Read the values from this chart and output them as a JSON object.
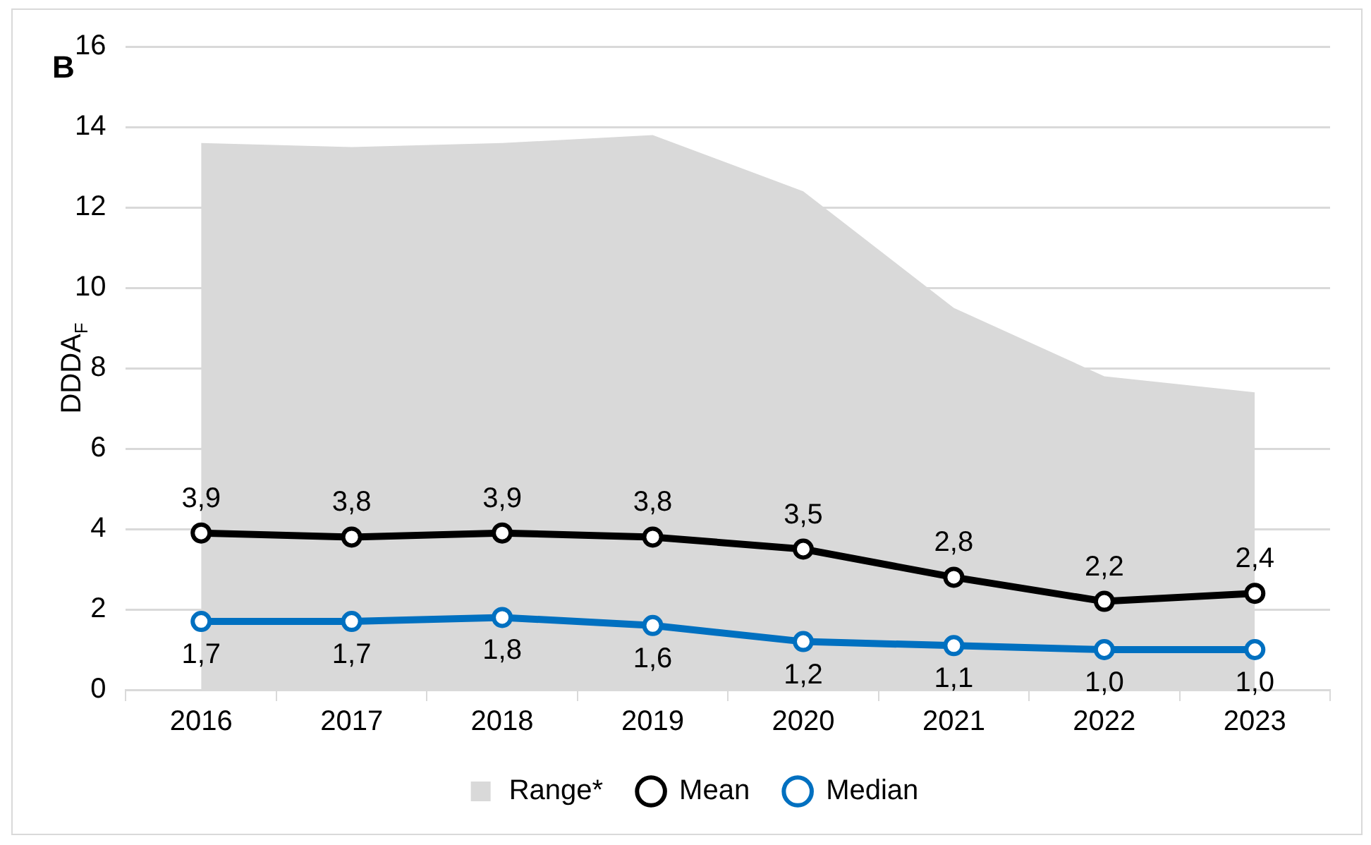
{
  "chart_data": {
    "type": "line",
    "title": "B",
    "ylabel": "DDDA$_{F}$",
    "categories": [
      "2016",
      "2017",
      "2018",
      "2019",
      "2020",
      "2021",
      "2022",
      "2023"
    ],
    "series": [
      {
        "name": "Range*",
        "type": "area",
        "color": "#d9d9d9",
        "values": [
          13.6,
          13.5,
          13.6,
          13.8,
          12.4,
          9.5,
          7.8,
          7.4
        ]
      },
      {
        "name": "Mean",
        "type": "line",
        "color": "#000000",
        "marker": "circle",
        "values": [
          3.9,
          3.8,
          3.9,
          3.8,
          3.5,
          2.8,
          2.2,
          2.4
        ],
        "value_labels": [
          "3,9",
          "3,8",
          "3,9",
          "3,8",
          "3,5",
          "2,8",
          "2,2",
          "2,4"
        ]
      },
      {
        "name": "Median",
        "type": "line",
        "color": "#0070c0",
        "marker": "circle",
        "values": [
          1.7,
          1.7,
          1.8,
          1.6,
          1.2,
          1.1,
          1.0,
          1.0
        ],
        "value_labels": [
          "1,7",
          "1,7",
          "1,8",
          "1,6",
          "1,2",
          "1,1",
          "1,0",
          "1,0"
        ]
      }
    ],
    "ylim": [
      0,
      16
    ],
    "yticks": [
      0,
      2,
      4,
      6,
      8,
      10,
      12,
      14,
      16
    ],
    "grid": "y",
    "legend": "bottom"
  }
}
